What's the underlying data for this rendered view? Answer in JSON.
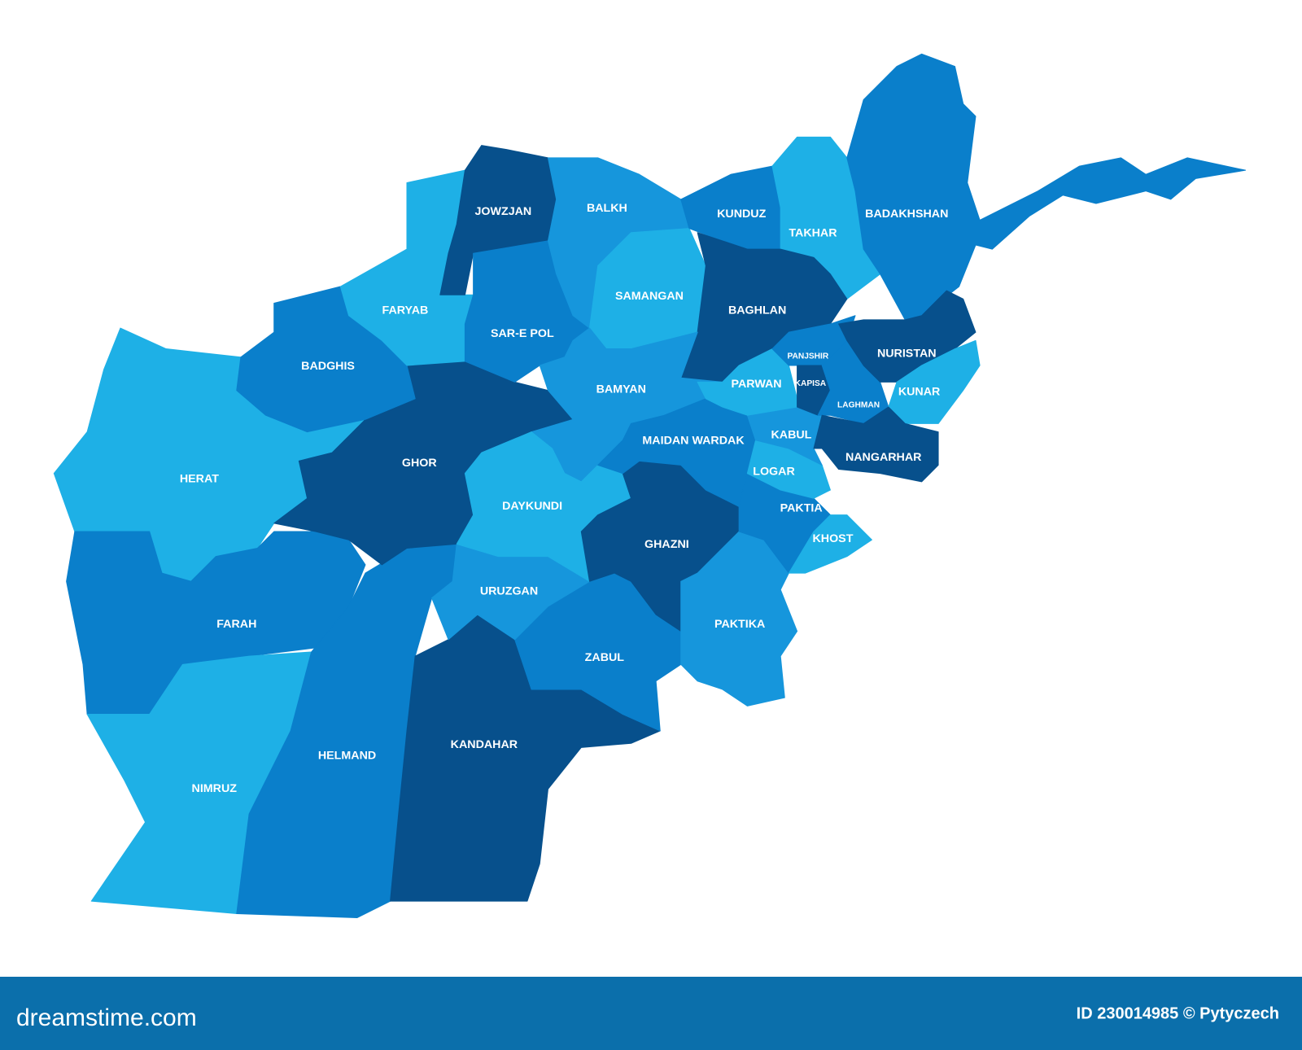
{
  "map": {
    "provinces": [
      {
        "name": "HERAT",
        "color": "#1eb0e6"
      },
      {
        "name": "FARAH",
        "color": "#0a7fcb"
      },
      {
        "name": "NIMRUZ",
        "color": "#1eb0e6"
      },
      {
        "name": "HELMAND",
        "color": "#0a7fcb"
      },
      {
        "name": "KANDAHAR",
        "color": "#07508c"
      },
      {
        "name": "ZABUL",
        "color": "#0a7fcb"
      },
      {
        "name": "URUZGAN",
        "color": "#1696dc"
      },
      {
        "name": "GHOR",
        "color": "#07508c"
      },
      {
        "name": "BADGHIS",
        "color": "#0a7fcb"
      },
      {
        "name": "FARYAB",
        "color": "#1eb0e6"
      },
      {
        "name": "JOWZJAN",
        "color": "#07508c"
      },
      {
        "name": "SAR-E POL",
        "color": "#0a7fcb"
      },
      {
        "name": "BALKH",
        "color": "#1696dc"
      },
      {
        "name": "SAMANGAN",
        "color": "#1eb0e6"
      },
      {
        "name": "KUNDUZ",
        "color": "#0a7fcb"
      },
      {
        "name": "TAKHAR",
        "color": "#1eb0e6"
      },
      {
        "name": "BADAKHSHAN",
        "color": "#0a7fcb"
      },
      {
        "name": "BAGHLAN",
        "color": "#07508c"
      },
      {
        "name": "BAMYAN",
        "color": "#1696dc"
      },
      {
        "name": "DAYKUNDI",
        "color": "#1eb0e6"
      },
      {
        "name": "GHAZNI",
        "color": "#07508c"
      },
      {
        "name": "MAIDAN WARDAK",
        "color": "#0a7fcb"
      },
      {
        "name": "PAKTIKA",
        "color": "#1696dc"
      },
      {
        "name": "PAKTIA",
        "color": "#0a7fcb"
      },
      {
        "name": "KHOST",
        "color": "#1eb0e6"
      },
      {
        "name": "LOGAR",
        "color": "#1eb0e6"
      },
      {
        "name": "KABUL",
        "color": "#1696dc"
      },
      {
        "name": "PARWAN",
        "color": "#1eb0e6"
      },
      {
        "name": "PANJSHIR",
        "color": "#0a7fcb"
      },
      {
        "name": "KAPISA",
        "color": "#07508c"
      },
      {
        "name": "LAGHMAN",
        "color": "#0a7fcb"
      },
      {
        "name": "NURISTAN",
        "color": "#07508c"
      },
      {
        "name": "KUNAR",
        "color": "#1eb0e6"
      },
      {
        "name": "NANGARHAR",
        "color": "#07508c"
      }
    ]
  },
  "footer": {
    "brand": "dreamstime.com",
    "id": "ID 230014985 © Pytyczech"
  }
}
